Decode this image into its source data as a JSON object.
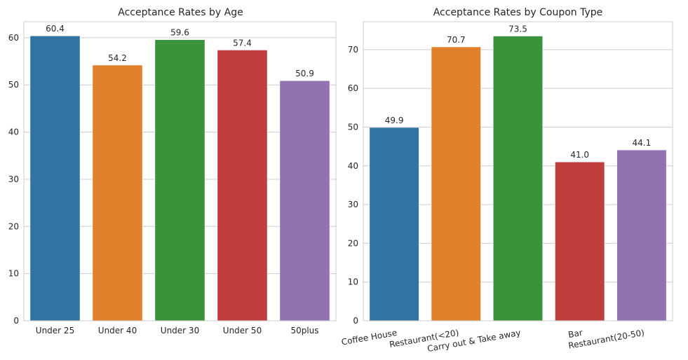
{
  "chart_data": [
    {
      "type": "bar",
      "title": "Acceptance Rates by Age",
      "categories": [
        "Under 25",
        "Under 40",
        "Under 30",
        "Under 50",
        "50plus"
      ],
      "values": [
        60.4,
        54.2,
        59.6,
        57.4,
        50.9
      ],
      "data_labels": [
        "60.4",
        "54.2",
        "59.6",
        "57.4",
        "50.9"
      ],
      "colors": [
        "#3274a1",
        "#e1812c",
        "#3a923a",
        "#c03d3e",
        "#9372b2"
      ],
      "yticks": [
        0,
        10,
        20,
        30,
        40,
        50,
        60
      ],
      "ylim": [
        0,
        63.4
      ],
      "grid": true,
      "xtick_rotation": 0
    },
    {
      "type": "bar",
      "title": "Acceptance Rates by Coupon Type",
      "categories": [
        "Coffee House",
        "Restaurant(<20)",
        "Carry out & Take away",
        "Bar",
        "Restaurant(20-50)"
      ],
      "values": [
        49.9,
        70.7,
        73.5,
        41.0,
        44.1
      ],
      "data_labels": [
        "49.9",
        "70.7",
        "73.5",
        "41.0",
        "44.1"
      ],
      "colors": [
        "#3274a1",
        "#e1812c",
        "#3a923a",
        "#c03d3e",
        "#9372b2"
      ],
      "yticks": [
        0,
        10,
        20,
        30,
        40,
        50,
        60,
        70
      ],
      "ylim": [
        0,
        77.2
      ],
      "grid": true,
      "xtick_rotation": -10
    }
  ]
}
